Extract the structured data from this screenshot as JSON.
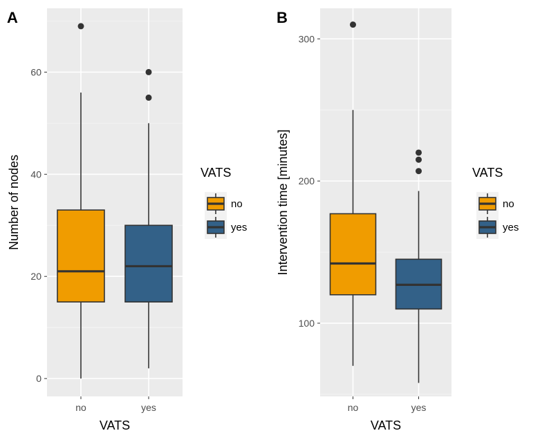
{
  "chart_data": [
    {
      "type": "box",
      "tag": "A",
      "xlabel": "VATS",
      "ylabel": "Number of nodes",
      "categories": [
        "no",
        "yes"
      ],
      "ylim": [
        -3.5,
        72.5
      ],
      "yticks": [
        0,
        20,
        40,
        60
      ],
      "grid": true,
      "legend": {
        "title": "VATS",
        "entries": [
          "no",
          "yes"
        ],
        "placement": "right"
      },
      "boxes": [
        {
          "category": "no",
          "min": 0,
          "q1": 15,
          "median": 21,
          "q3": 33,
          "max": 56,
          "outliers": [
            69
          ]
        },
        {
          "category": "yes",
          "min": 2,
          "q1": 15,
          "median": 22,
          "q3": 30,
          "max": 50,
          "outliers": [
            55,
            60
          ]
        }
      ]
    },
    {
      "type": "box",
      "tag": "B",
      "xlabel": "VATS",
      "ylabel": "Intervention time [minutes]",
      "categories": [
        "no",
        "yes"
      ],
      "ylim": [
        48.5,
        321.5
      ],
      "yticks": [
        100,
        200,
        300
      ],
      "grid": true,
      "legend": {
        "title": "VATS",
        "entries": [
          "no",
          "yes"
        ],
        "placement": "right"
      },
      "boxes": [
        {
          "category": "no",
          "min": 70,
          "q1": 120,
          "median": 142,
          "q3": 177,
          "max": 250,
          "outliers": [
            310
          ]
        },
        {
          "category": "yes",
          "min": 58,
          "q1": 110,
          "median": 127,
          "q3": 145,
          "max": 193,
          "outliers": [
            207,
            215,
            220
          ]
        }
      ]
    }
  ],
  "colors": {
    "no": "#f09c00",
    "yes": "#336188"
  }
}
